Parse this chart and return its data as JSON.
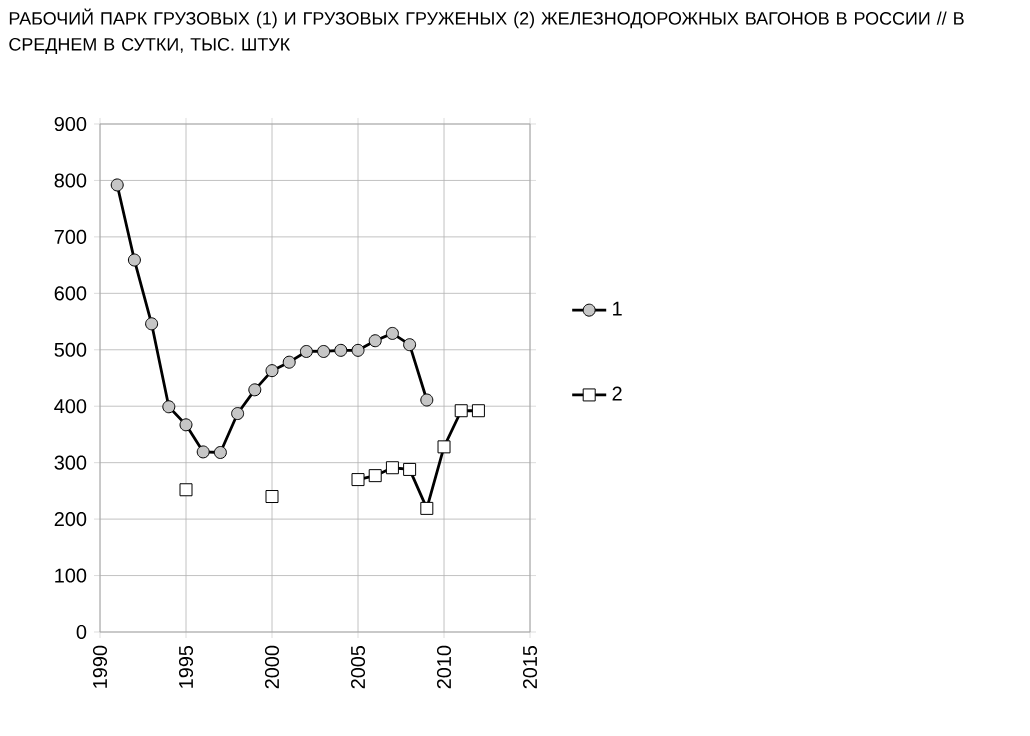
{
  "chart_data": {
    "type": "line",
    "title": "РАБОЧИЙ ПАРК ГРУЗОВЫХ (1) И ГРУЗОВЫХ ГРУЖЕНЫХ (2) ЖЕЛЕЗНОДОРОЖНЫХ ВАГОНОВ В РОССИИ // В СРЕДНЕМ В СУТКИ, ТЫС. ШТУК",
    "series": [
      {
        "name": "1",
        "color": "#000000",
        "marker": "circle",
        "x": [
          1991,
          1992,
          1993,
          1994,
          1995,
          1996,
          1997,
          1998,
          1999,
          2000,
          2001,
          2002,
          2003,
          2004,
          2005,
          2006,
          2007,
          2008,
          2009
        ],
        "values": [
          792,
          659,
          546,
          399,
          367,
          319,
          318,
          387,
          429,
          463,
          478,
          497,
          497,
          499,
          499,
          516,
          529,
          509,
          411
        ]
      },
      {
        "name": "2",
        "color": "#000000",
        "marker": "square",
        "x": [
          1995,
          1996,
          1997,
          1998,
          1999,
          2000,
          2001,
          2002,
          2003,
          2004,
          2005,
          2006,
          2007,
          2008,
          2009,
          2010,
          2011,
          2012
        ],
        "values": [
          252,
          null,
          null,
          null,
          null,
          240,
          null,
          null,
          null,
          null,
          270,
          277,
          291,
          288,
          219,
          328,
          392,
          392
        ]
      }
    ],
    "xlim": [
      1990,
      2015
    ],
    "xticks": [
      1990,
      1995,
      2000,
      2005,
      2010,
      2015
    ],
    "ylim": [
      0,
      900
    ],
    "yticks": [
      0,
      100,
      200,
      300,
      400,
      500,
      600,
      700,
      800,
      900
    ],
    "grid": true,
    "legend": "right"
  }
}
